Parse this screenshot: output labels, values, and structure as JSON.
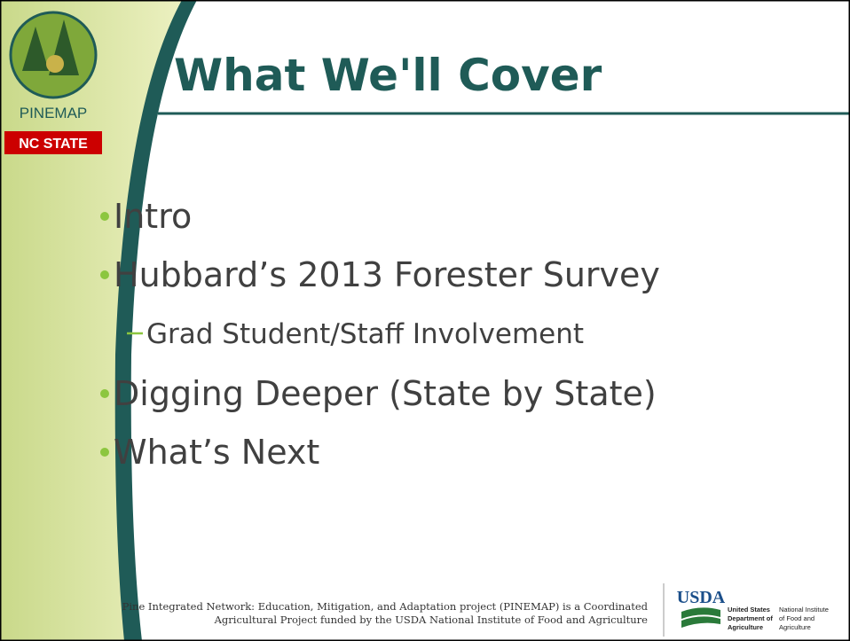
{
  "logo": {
    "name": "PINEMAP",
    "badge": "NC STATE"
  },
  "title": "What We'll Cover",
  "bullets": [
    {
      "text": "Intro"
    },
    {
      "text": "Hubbard’s 2013 Forester Survey",
      "sub": [
        "Grad Student/Staff Involvement"
      ]
    },
    {
      "text": "Digging Deeper (State by State)"
    },
    {
      "text": "What’s Next"
    }
  ],
  "footer": [
    "Pine Integrated Network: Education, Mitigation, and Adaptation project (PINEMAP) is a Coordinated",
    "Agricultural Project funded by the USDA National Institute of Food and Agriculture"
  ],
  "usda": {
    "mark": "USDA",
    "agency": [
      "United States",
      "Department of",
      "Agriculture"
    ],
    "institute": [
      "National Institute",
      "of Food and",
      "Agriculture"
    ]
  }
}
